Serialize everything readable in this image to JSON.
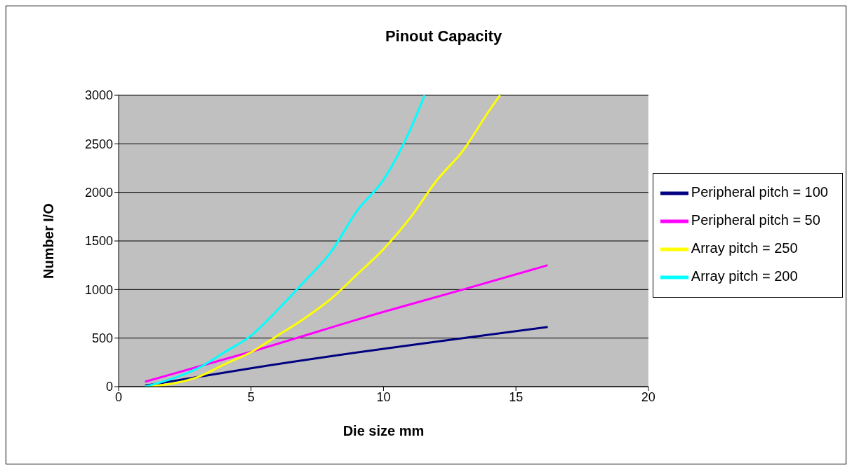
{
  "chart_data": {
    "type": "line",
    "title": "Pinout Capacity",
    "xlabel": "Die size  mm",
    "ylabel": "Number I/O",
    "xlim": [
      0,
      20
    ],
    "xticks": [
      0,
      5,
      10,
      15,
      20
    ],
    "ylim": [
      0,
      3000
    ],
    "yticks": [
      0,
      500,
      1000,
      1500,
      2000,
      2500,
      3000
    ],
    "grid": "y",
    "legend": "right",
    "marker": "none",
    "series": [
      {
        "name": "Peripheral pitch = 100",
        "color": "#000080",
        "x": [
          1,
          5,
          10,
          13,
          16.2
        ],
        "values": [
          10,
          190,
          390,
          500,
          615
        ]
      },
      {
        "name": "Peripheral pitch = 50",
        "color": "#ff00ff",
        "x": [
          1,
          5,
          10,
          13,
          16.2
        ],
        "values": [
          50,
          360,
          770,
          1000,
          1250
        ]
      },
      {
        "name": "Array pitch = 250",
        "color": "#ffff00",
        "x": [
          1,
          2,
          3,
          4,
          5,
          6,
          7,
          8,
          9,
          10,
          11,
          12,
          13,
          14,
          14.4
        ],
        "values": [
          0,
          30,
          100,
          230,
          355,
          525,
          700,
          900,
          1155,
          1415,
          1735,
          2120,
          2430,
          2845,
          3000
        ]
      },
      {
        "name": "Array pitch = 200",
        "color": "#00ffff",
        "x": [
          1,
          2,
          3,
          4,
          5,
          6,
          7,
          8,
          9,
          10,
          11,
          11.55
        ],
        "values": [
          0,
          80,
          190,
          355,
          525,
          790,
          1080,
          1380,
          1810,
          2130,
          2640,
          3000
        ]
      }
    ]
  }
}
